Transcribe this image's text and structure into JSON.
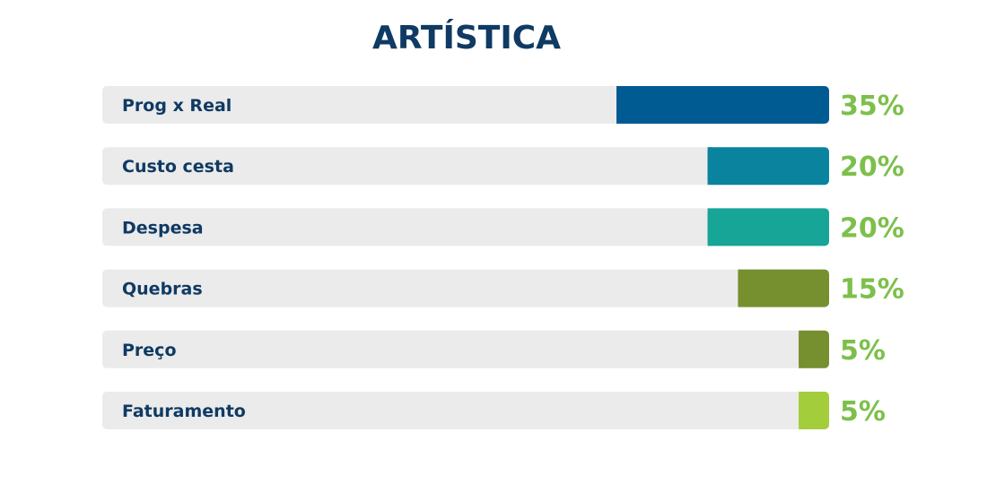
{
  "chart_data": {
    "type": "bar",
    "orientation": "horizontal",
    "title": "ARTÍSTICA",
    "categories": [
      "Prog x Real",
      "Custo cesta",
      "Despesa",
      "Quebras",
      "Preço",
      "Faturamento"
    ],
    "values": [
      35,
      20,
      20,
      15,
      5,
      5
    ],
    "value_labels": [
      "35%",
      "20%",
      "20%",
      "15%",
      "5%",
      "5%"
    ],
    "xlim": [
      0,
      100
    ],
    "colors": [
      "#005b92",
      "#0a839f",
      "#16a596",
      "#768f2f",
      "#768f2f",
      "#a3cd3b"
    ],
    "track_color": "#ebebeb",
    "label_color": "#0f3a63",
    "value_label_color": "#7cc04b",
    "grid": false,
    "legend": "none"
  }
}
